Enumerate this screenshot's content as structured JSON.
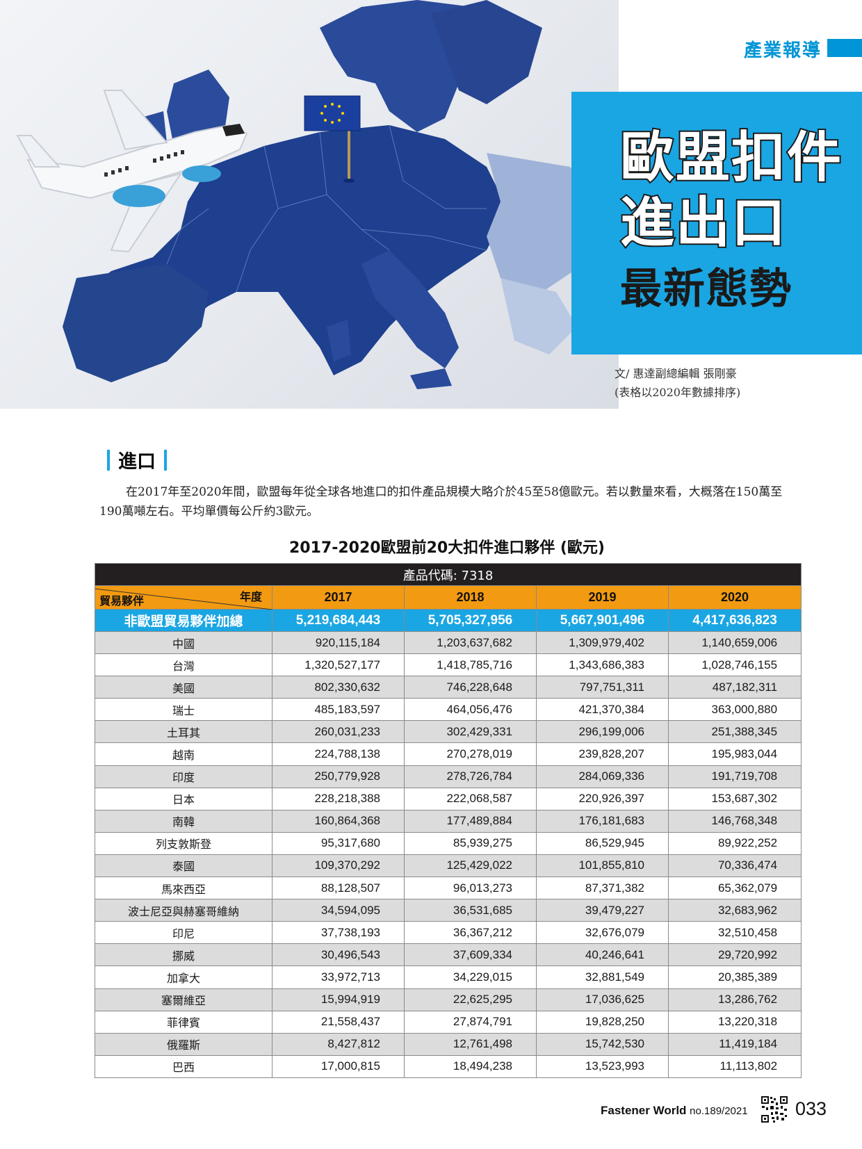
{
  "header": {
    "section": "產業報導",
    "title_line1": "歐盟扣件",
    "title_line2": "進出口",
    "title_line3": "最新態勢",
    "byline_author": "文/ 惠達副總編輯 張剛豪",
    "byline_note": "(表格以2020年數據排序)"
  },
  "body": {
    "subheading": "進口",
    "paragraph": "在2017年至2020年間，歐盟每年從全球各地進口的扣件產品規模大略介於45至58億歐元。若以數量來看，大概落在150萬至190萬噸左右。平均單價每公斤約3歐元。"
  },
  "table": {
    "title": "2017-2020歐盟前20大扣件進口夥伴 (歐元)",
    "product_code": "產品代碼: 7318",
    "corner_year": "年度",
    "corner_partner": "貿易夥伴",
    "years": [
      "2017",
      "2018",
      "2019",
      "2020"
    ],
    "total": {
      "label": "非歐盟貿易夥伴加總",
      "values": [
        "5,219,684,443",
        "5,705,327,956",
        "5,667,901,496",
        "4,417,636,823"
      ]
    },
    "rows": [
      {
        "country": "中國",
        "values": [
          "920,115,184",
          "1,203,637,682",
          "1,309,979,402",
          "1,140,659,006"
        ]
      },
      {
        "country": "台灣",
        "values": [
          "1,320,527,177",
          "1,418,785,716",
          "1,343,686,383",
          "1,028,746,155"
        ]
      },
      {
        "country": "美國",
        "values": [
          "802,330,632",
          "746,228,648",
          "797,751,311",
          "487,182,311"
        ]
      },
      {
        "country": "瑞士",
        "values": [
          "485,183,597",
          "464,056,476",
          "421,370,384",
          "363,000,880"
        ]
      },
      {
        "country": "土耳其",
        "values": [
          "260,031,233",
          "302,429,331",
          "296,199,006",
          "251,388,345"
        ]
      },
      {
        "country": "越南",
        "values": [
          "224,788,138",
          "270,278,019",
          "239,828,207",
          "195,983,044"
        ]
      },
      {
        "country": "印度",
        "values": [
          "250,779,928",
          "278,726,784",
          "284,069,336",
          "191,719,708"
        ]
      },
      {
        "country": "日本",
        "values": [
          "228,218,388",
          "222,068,587",
          "220,926,397",
          "153,687,302"
        ]
      },
      {
        "country": "南韓",
        "values": [
          "160,864,368",
          "177,489,884",
          "176,181,683",
          "146,768,348"
        ]
      },
      {
        "country": "列支敦斯登",
        "values": [
          "95,317,680",
          "85,939,275",
          "86,529,945",
          "89,922,252"
        ]
      },
      {
        "country": "泰國",
        "values": [
          "109,370,292",
          "125,429,022",
          "101,855,810",
          "70,336,474"
        ]
      },
      {
        "country": "馬來西亞",
        "values": [
          "88,128,507",
          "96,013,273",
          "87,371,382",
          "65,362,079"
        ]
      },
      {
        "country": "波士尼亞與赫塞哥維納",
        "values": [
          "34,594,095",
          "36,531,685",
          "39,479,227",
          "32,683,962"
        ]
      },
      {
        "country": "印尼",
        "values": [
          "37,738,193",
          "36,367,212",
          "32,676,079",
          "32,510,458"
        ]
      },
      {
        "country": "挪威",
        "values": [
          "30,496,543",
          "37,609,334",
          "40,246,641",
          "29,720,992"
        ]
      },
      {
        "country": "加拿大",
        "values": [
          "33,972,713",
          "34,229,015",
          "32,881,549",
          "20,385,389"
        ]
      },
      {
        "country": "塞爾維亞",
        "values": [
          "15,994,919",
          "22,625,295",
          "17,036,625",
          "13,286,762"
        ]
      },
      {
        "country": "菲律賓",
        "values": [
          "21,558,437",
          "27,874,791",
          "19,828,250",
          "13,220,318"
        ]
      },
      {
        "country": "俄羅斯",
        "values": [
          "8,427,812",
          "12,761,498",
          "15,742,530",
          "11,419,184"
        ]
      },
      {
        "country": "巴西",
        "values": [
          "17,000,815",
          "18,494,238",
          "13,523,993",
          "11,113,802"
        ]
      }
    ]
  },
  "footer": {
    "magazine": "Fastener World",
    "issue": "no.189/2021",
    "page": "033"
  },
  "colors": {
    "accent_blue": "#1aa6e3",
    "header_blue": "#0095d6",
    "year_orange": "#f29a11",
    "code_black": "#231f20",
    "stripe_gray": "#dcdcdc"
  },
  "icons": [
    "airplane-icon",
    "eu-flag-icon",
    "qr-code-icon"
  ]
}
